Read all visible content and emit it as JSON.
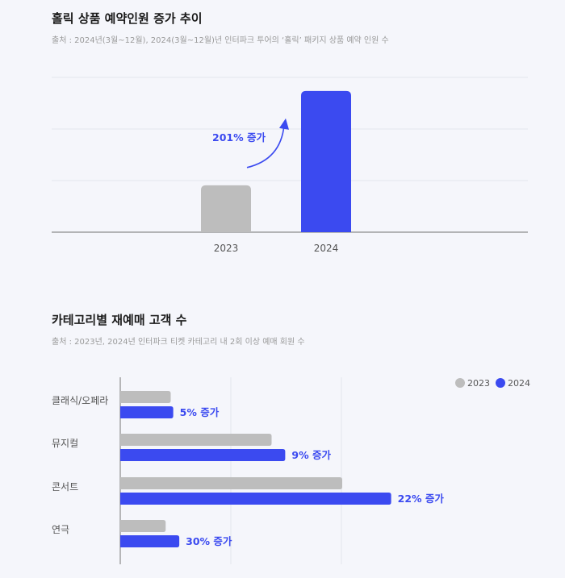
{
  "colors": {
    "series_2023": "#bdbdbd",
    "series_2024": "#3b4af0",
    "background": "#f5f6fb",
    "grid": "#e3e5ee",
    "axis": "#8c8c8c",
    "label": "#555555"
  },
  "chart_data": [
    {
      "type": "bar",
      "title": "홀릭 상품 예약인원 증가 추이",
      "subtitle": "출처 : 2024년(3월~12월), 2024(3월~12월)년 인터파크 투어의 ‘홀릭’ 패키지 상품 예약 인원 수",
      "categories": [
        "2023",
        "2024"
      ],
      "values": [
        100,
        301
      ],
      "ylim": [
        0,
        330
      ],
      "grid": true,
      "annotation": "201% 증가"
    },
    {
      "type": "bar",
      "orientation": "horizontal",
      "title": "카테고리별 재예매 고객 수",
      "subtitle": "출처 : 2023년, 2024년 인터파크 티켓 카테고리 내 2회 이상 예매 회원 수",
      "categories": [
        "클래식/오페라",
        "뮤지컬",
        "콘서트",
        "연극"
      ],
      "series": [
        {
          "name": "2023",
          "values": [
            100,
            300,
            440,
            90
          ]
        },
        {
          "name": "2024",
          "values": [
            105,
            327,
            537,
            117
          ]
        }
      ],
      "increase_labels": [
        "5% 증가",
        "9% 증가",
        "22% 증가",
        "30% 증가"
      ],
      "xlim": [
        0,
        650
      ],
      "grid": true,
      "legend": "top-right"
    }
  ]
}
